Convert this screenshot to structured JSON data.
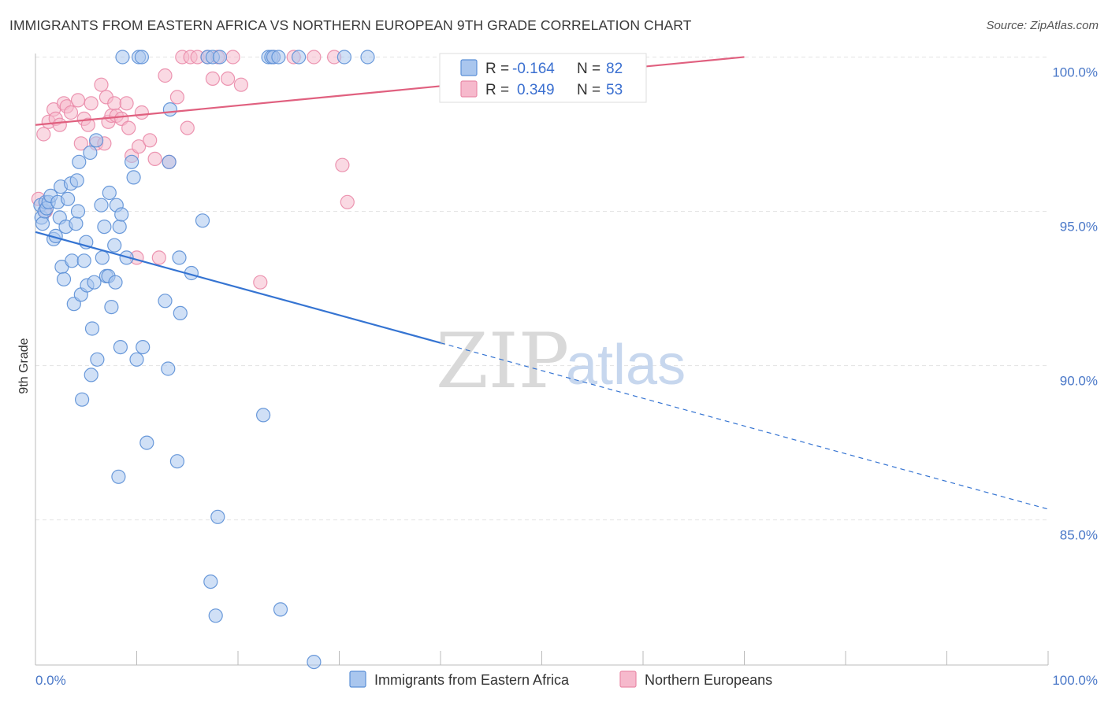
{
  "title": "IMMIGRANTS FROM EASTERN AFRICA VS NORTHERN EUROPEAN 9TH GRADE CORRELATION CHART",
  "source": "Source: ZipAtlas.com",
  "watermark": {
    "zip": "ZIP",
    "atlas": "atlas"
  },
  "colors": {
    "blue_fill": "#a9c6ee",
    "blue_stroke": "#5b8fd6",
    "blue_line": "#3574d2",
    "pink_fill": "#f6b9cc",
    "pink_stroke": "#ea8aa8",
    "pink_line": "#e0607f",
    "grid": "#e3e3e3",
    "tick_text": "#4a78c8"
  },
  "legend": {
    "rows": [
      {
        "r_label": "R =",
        "r_value": "-0.164",
        "n_label": "N =",
        "n_value": "82"
      },
      {
        "r_label": "R =",
        "r_value": "0.349",
        "n_label": "N =",
        "n_value": "53"
      }
    ]
  },
  "bottom_legend": [
    "Immigrants from Eastern Africa",
    "Northern Europeans"
  ],
  "chart_data": {
    "type": "scatter",
    "title": "IMMIGRANTS FROM EASTERN AFRICA VS NORTHERN EUROPEAN 9TH GRADE CORRELATION CHART",
    "xlabel": "",
    "ylabel": "9th Grade",
    "xlim": [
      0,
      100
    ],
    "ylim": [
      80.3,
      100.7
    ],
    "x_tick_labels": [
      "0.0%",
      "100.0%"
    ],
    "y_ticks": [
      85,
      90,
      95,
      100
    ],
    "y_tick_labels": [
      "85.0%",
      "90.0%",
      "95.0%",
      "100.0%"
    ],
    "grid": true,
    "legend_placement": "top-center",
    "series": [
      {
        "name": "Immigrants from Eastern Africa",
        "r": -0.164,
        "n": 82,
        "trend": {
          "x0": 0,
          "y0": 94.33,
          "x_solid_end": 40,
          "x1": 100,
          "y1": 85.35
        },
        "points": [
          [
            0.5,
            95.2
          ],
          [
            0.6,
            94.8
          ],
          [
            0.7,
            94.6
          ],
          [
            0.9,
            95.0
          ],
          [
            1.0,
            95.3
          ],
          [
            1.1,
            95.1
          ],
          [
            1.3,
            95.3
          ],
          [
            1.5,
            95.5
          ],
          [
            1.8,
            94.1
          ],
          [
            2.0,
            94.2
          ],
          [
            2.2,
            95.3
          ],
          [
            2.4,
            94.8
          ],
          [
            2.5,
            95.8
          ],
          [
            2.6,
            93.2
          ],
          [
            2.8,
            92.8
          ],
          [
            3.0,
            94.5
          ],
          [
            3.2,
            95.4
          ],
          [
            3.5,
            95.9
          ],
          [
            3.6,
            93.4
          ],
          [
            3.8,
            92.0
          ],
          [
            4.0,
            94.6
          ],
          [
            4.1,
            96.0
          ],
          [
            4.2,
            95.0
          ],
          [
            4.3,
            96.6
          ],
          [
            4.5,
            92.3
          ],
          [
            4.6,
            88.9
          ],
          [
            4.8,
            93.4
          ],
          [
            5.0,
            94.0
          ],
          [
            5.1,
            92.6
          ],
          [
            5.4,
            96.9
          ],
          [
            5.5,
            89.7
          ],
          [
            5.6,
            91.2
          ],
          [
            5.8,
            92.7
          ],
          [
            6.0,
            97.3
          ],
          [
            6.1,
            90.2
          ],
          [
            6.5,
            95.2
          ],
          [
            6.6,
            93.5
          ],
          [
            6.8,
            94.5
          ],
          [
            7.0,
            92.9
          ],
          [
            7.2,
            92.9
          ],
          [
            7.3,
            95.6
          ],
          [
            7.5,
            91.9
          ],
          [
            7.8,
            93.9
          ],
          [
            7.9,
            92.7
          ],
          [
            8.0,
            95.2
          ],
          [
            8.2,
            86.4
          ],
          [
            8.3,
            94.5
          ],
          [
            8.4,
            90.6
          ],
          [
            8.5,
            94.9
          ],
          [
            8.6,
            100.0
          ],
          [
            9.0,
            93.5
          ],
          [
            9.5,
            96.6
          ],
          [
            9.7,
            96.1
          ],
          [
            10.0,
            90.2
          ],
          [
            10.2,
            100.0
          ],
          [
            10.5,
            100.0
          ],
          [
            10.6,
            90.6
          ],
          [
            11.0,
            87.5
          ],
          [
            12.8,
            92.1
          ],
          [
            13.1,
            89.9
          ],
          [
            13.2,
            96.6
          ],
          [
            13.3,
            98.3
          ],
          [
            14.0,
            86.9
          ],
          [
            14.2,
            93.5
          ],
          [
            14.3,
            91.7
          ],
          [
            15.4,
            93.0
          ],
          [
            16.5,
            94.7
          ],
          [
            17.0,
            100.0
          ],
          [
            17.3,
            83.0
          ],
          [
            17.5,
            100.0
          ],
          [
            17.8,
            81.9
          ],
          [
            18.0,
            85.1
          ],
          [
            18.2,
            100.0
          ],
          [
            22.5,
            88.4
          ],
          [
            23.0,
            100.0
          ],
          [
            23.3,
            100.0
          ],
          [
            23.5,
            100.0
          ],
          [
            24.0,
            100.0
          ],
          [
            24.2,
            82.1
          ],
          [
            26.0,
            100.0
          ],
          [
            27.5,
            80.4
          ],
          [
            30.5,
            100.0
          ],
          [
            32.8,
            100.0
          ]
        ]
      },
      {
        "name": "Northern Europeans",
        "r": 0.349,
        "n": 53,
        "trend": {
          "x0": 0,
          "y0": 97.8,
          "x1": 70,
          "y1": 100.0
        },
        "points": [
          [
            0.3,
            95.4
          ],
          [
            0.8,
            97.5
          ],
          [
            1.0,
            95.0
          ],
          [
            1.3,
            97.9
          ],
          [
            1.8,
            98.3
          ],
          [
            2.0,
            98.0
          ],
          [
            2.4,
            97.8
          ],
          [
            2.8,
            98.5
          ],
          [
            3.1,
            98.4
          ],
          [
            3.5,
            98.2
          ],
          [
            4.2,
            98.6
          ],
          [
            4.5,
            97.2
          ],
          [
            4.8,
            98.0
          ],
          [
            5.2,
            97.8
          ],
          [
            5.5,
            98.5
          ],
          [
            6.0,
            97.2
          ],
          [
            6.5,
            99.1
          ],
          [
            6.8,
            97.2
          ],
          [
            7.0,
            98.7
          ],
          [
            7.2,
            97.9
          ],
          [
            7.5,
            98.1
          ],
          [
            7.8,
            98.5
          ],
          [
            8.0,
            98.1
          ],
          [
            8.5,
            98.0
          ],
          [
            9.0,
            98.5
          ],
          [
            9.2,
            97.7
          ],
          [
            9.5,
            96.8
          ],
          [
            10.0,
            93.5
          ],
          [
            10.2,
            97.1
          ],
          [
            10.5,
            98.2
          ],
          [
            11.3,
            97.3
          ],
          [
            11.8,
            96.7
          ],
          [
            12.2,
            93.5
          ],
          [
            12.8,
            99.4
          ],
          [
            13.2,
            96.6
          ],
          [
            14.0,
            98.7
          ],
          [
            14.5,
            100.0
          ],
          [
            15.0,
            97.7
          ],
          [
            15.3,
            100.0
          ],
          [
            16.0,
            100.0
          ],
          [
            17.0,
            100.0
          ],
          [
            17.5,
            99.3
          ],
          [
            18.0,
            100.0
          ],
          [
            19.0,
            99.3
          ],
          [
            19.5,
            100.0
          ],
          [
            20.3,
            99.1
          ],
          [
            22.2,
            92.7
          ],
          [
            23.5,
            100.0
          ],
          [
            25.5,
            100.0
          ],
          [
            27.5,
            100.0
          ],
          [
            29.5,
            100.0
          ],
          [
            30.3,
            96.5
          ],
          [
            30.8,
            95.3
          ]
        ]
      }
    ]
  }
}
